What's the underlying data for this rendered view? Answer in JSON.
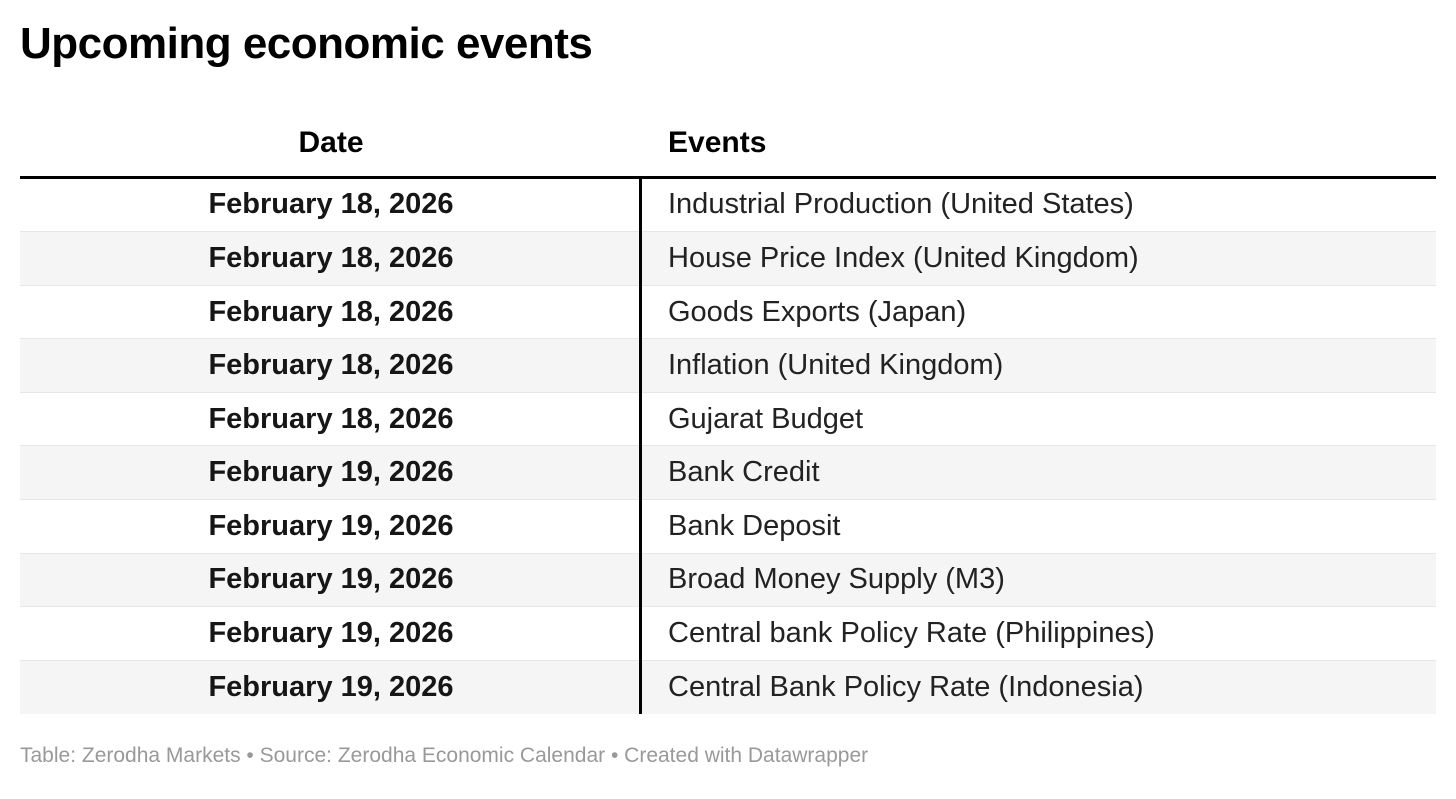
{
  "chart_data": {
    "type": "table",
    "title": "Upcoming economic events",
    "columns": [
      "Date",
      "Events"
    ],
    "rows": [
      [
        "February 18, 2026",
        "Industrial Production (United States)"
      ],
      [
        "February 18, 2026",
        "House Price Index (United Kingdom)"
      ],
      [
        "February 18, 2026",
        "Goods Exports (Japan)"
      ],
      [
        "February 18, 2026",
        "Inflation (United Kingdom)"
      ],
      [
        "February 18, 2026",
        "Gujarat Budget"
      ],
      [
        "February 19, 2026",
        "Bank Credit"
      ],
      [
        "February 19, 2026",
        "Bank Deposit"
      ],
      [
        "February 19, 2026",
        "Broad Money Supply (M3)"
      ],
      [
        "February 19, 2026",
        "Central bank Policy Rate (Philippines)"
      ],
      [
        "February 19, 2026",
        "Central Bank Policy Rate (Indonesia)"
      ]
    ],
    "footnote": "Table: Zerodha Markets • Source: Zerodha Economic Calendar • Created with Datawrapper",
    "layout_hints": {
      "date_column_align": "center",
      "events_column_align": "left",
      "row_striping": "alternating starting white"
    },
    "colors": {
      "title_text": "#000000",
      "header_text": "#000000",
      "date_text": "#161616",
      "event_text": "#222222",
      "stripe": "#f5f5f5",
      "row_border": "#e7e7e7",
      "rule_and_divider": "#000000",
      "footer_text": "#999999",
      "background": "#ffffff"
    }
  }
}
